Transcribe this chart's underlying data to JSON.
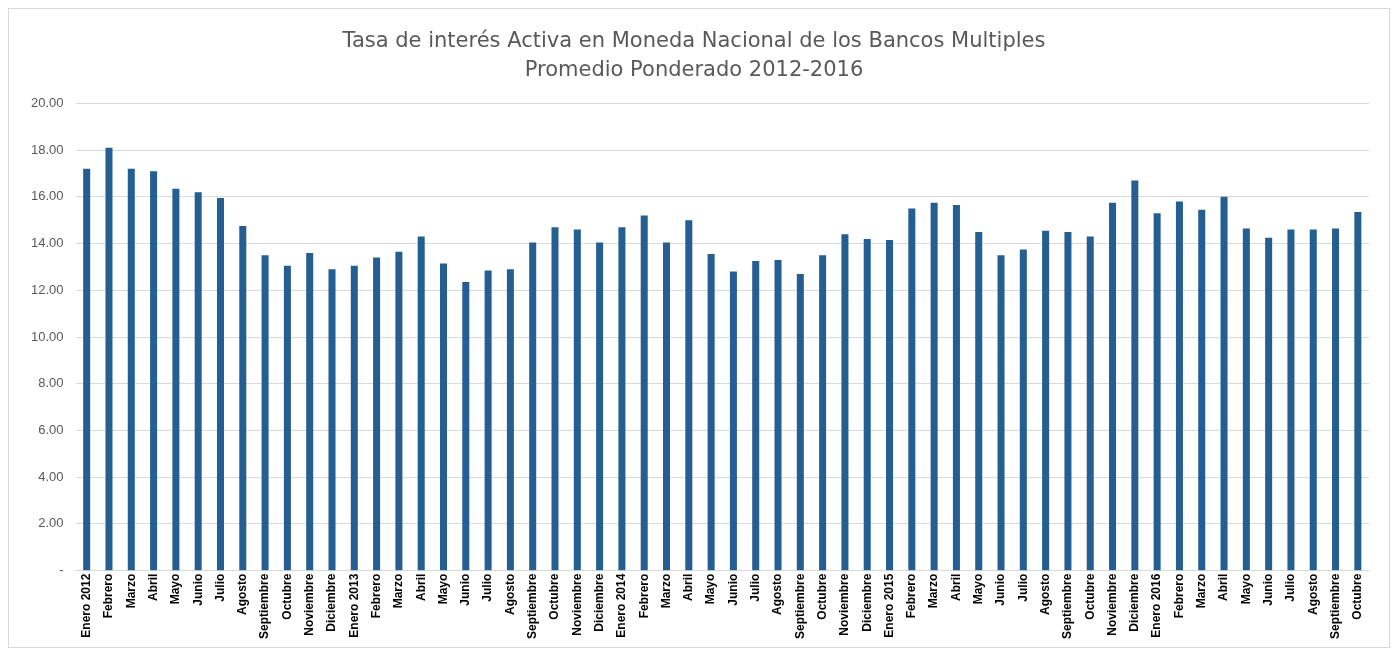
{
  "chart_data": {
    "type": "bar",
    "title": "Tasa de interés Activa en Moneda Nacional de los Bancos Multiples",
    "subtitle": "Promedio Ponderado 2012-2016",
    "categories": [
      "Enero 2012",
      "Febrero",
      "Marzo",
      "Abril",
      "Mayo",
      "Junio",
      "Julio",
      "Agosto",
      "Septiembre",
      "Octubre",
      "Noviembre",
      "Diciembre",
      "Enero 2013",
      "Febrero",
      "Marzo",
      "Abril",
      "Mayo",
      "Junio",
      "Julio",
      "Agosto",
      "Septiembre",
      "Octubre",
      "Noviembre",
      "Diciembre",
      "Enero 2014",
      "Febrero",
      "Marzo",
      "Abril",
      "Mayo",
      "Junio",
      "Julio",
      "Agosto",
      "Septiembre",
      "Octubre",
      "Noviembre",
      "Diciembre",
      "Enero 2015",
      "Febrero",
      "Marzo",
      "Abril",
      "Mayo",
      "Junio",
      "Julio",
      "Agosto",
      "Septiembre",
      "Octubre",
      "Noviembre",
      "Diciembre",
      "Enero 2016",
      "Febrero",
      "Marzo",
      "Abril",
      "Mayo",
      "Junio",
      "Julio",
      "Agosto",
      "Septiembre",
      "Octubre"
    ],
    "values": [
      17.2,
      18.1,
      17.2,
      17.1,
      16.35,
      16.2,
      15.95,
      14.75,
      13.5,
      13.05,
      13.6,
      12.9,
      13.05,
      13.4,
      13.65,
      14.3,
      13.15,
      12.35,
      12.85,
      12.9,
      14.05,
      14.7,
      14.6,
      14.05,
      14.7,
      15.2,
      14.05,
      15.0,
      13.55,
      12.8,
      13.25,
      13.3,
      12.7,
      13.5,
      14.4,
      14.2,
      14.15,
      15.5,
      15.75,
      15.65,
      14.5,
      13.5,
      13.75,
      14.55,
      14.5,
      14.3,
      15.75,
      16.7,
      15.3,
      15.8,
      15.45,
      16.0,
      14.65,
      14.25,
      14.6,
      14.6,
      14.65,
      15.35
    ],
    "color": "#255e91",
    "ylim": [
      0,
      20
    ],
    "yticks": [
      {
        "value": 0,
        "label": "-"
      },
      {
        "value": 2,
        "label": "2.00"
      },
      {
        "value": 4,
        "label": "4.00"
      },
      {
        "value": 6,
        "label": "6.00"
      },
      {
        "value": 8,
        "label": "8.00"
      },
      {
        "value": 10,
        "label": "10.00"
      },
      {
        "value": 12,
        "label": "12.00"
      },
      {
        "value": 14,
        "label": "14.00"
      },
      {
        "value": 16,
        "label": "16.00"
      },
      {
        "value": 18,
        "label": "18.00"
      },
      {
        "value": 20,
        "label": "20.00"
      }
    ],
    "grid": "y",
    "legend": false
  }
}
